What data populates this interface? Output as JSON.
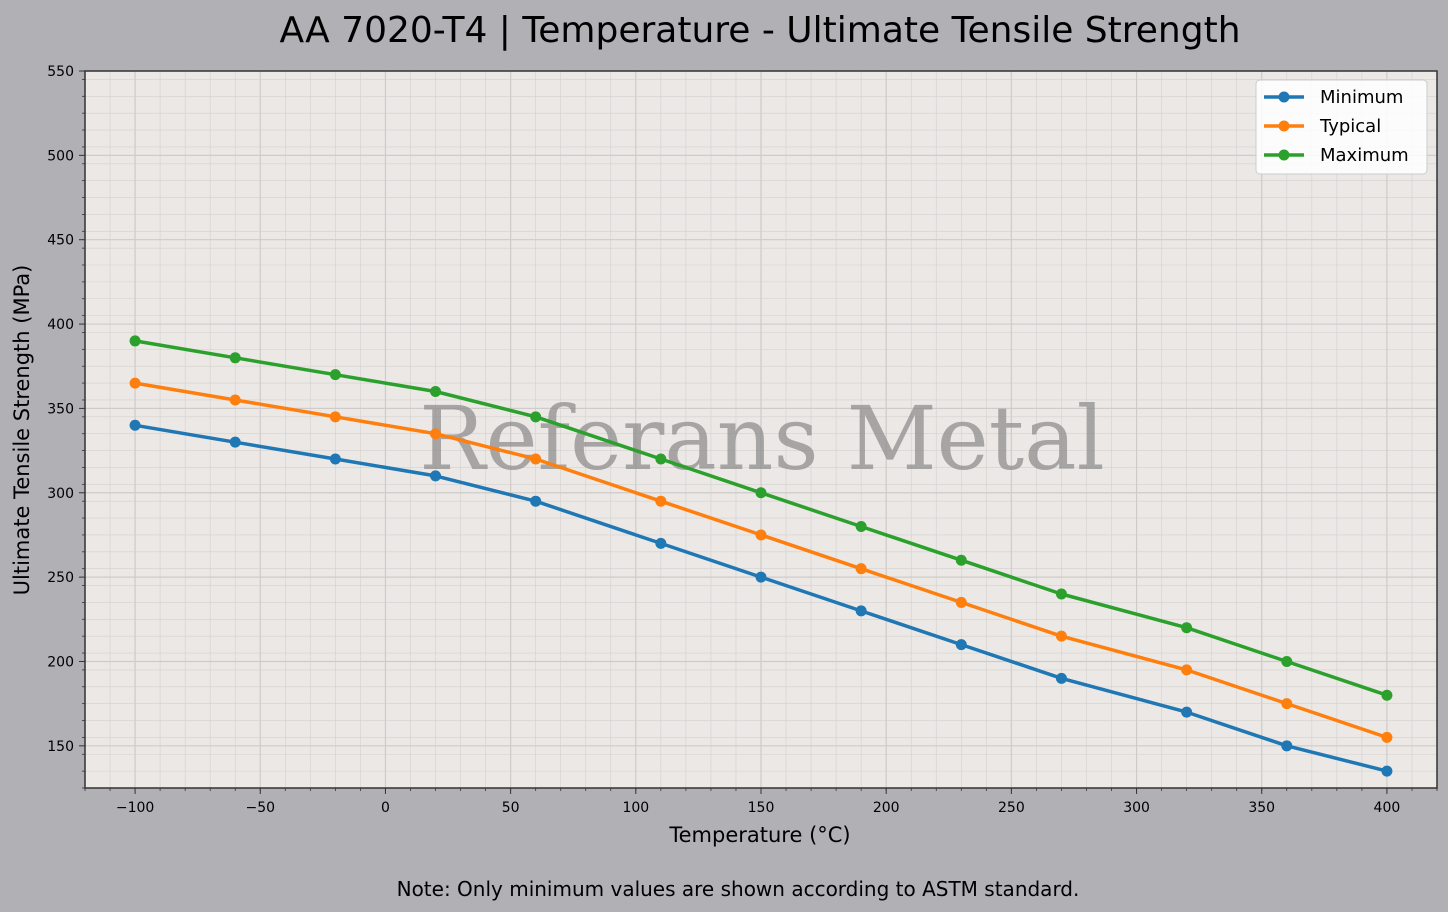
{
  "chart_data": {
    "type": "line",
    "title": "AA 7020-T4 | Temperature - Ultimate Tensile Strength",
    "xlabel": "Temperature (°C)",
    "ylabel": "Ultimate Tensile Strength (MPa)",
    "xlim": [
      -120,
      420
    ],
    "ylim": [
      125,
      550
    ],
    "x_ticks": [
      -100,
      -50,
      0,
      50,
      100,
      150,
      200,
      250,
      300,
      350,
      400
    ],
    "x_tick_labels": [
      "−100",
      "−50",
      "0",
      "50",
      "100",
      "150",
      "200",
      "250",
      "300",
      "350",
      "400"
    ],
    "y_ticks": [
      150,
      200,
      250,
      300,
      350,
      400,
      450,
      500,
      550
    ],
    "y_tick_labels": [
      "150",
      "200",
      "250",
      "300",
      "350",
      "400",
      "450",
      "500",
      "550"
    ],
    "grid": true,
    "legend_position": "top-right",
    "x": [
      -100,
      -60,
      -20,
      20,
      60,
      110,
      150,
      190,
      230,
      270,
      320,
      360,
      400
    ],
    "series": [
      {
        "name": "Minimum",
        "color": "#1f77b4",
        "values": [
          340,
          330,
          320,
          310,
          295,
          270,
          250,
          230,
          210,
          190,
          170,
          150,
          135
        ]
      },
      {
        "name": "Typical",
        "color": "#ff7f0e",
        "values": [
          365,
          355,
          345,
          335,
          320,
          295,
          275,
          255,
          235,
          215,
          195,
          175,
          155
        ]
      },
      {
        "name": "Maximum",
        "color": "#2ca02c",
        "values": [
          390,
          380,
          370,
          360,
          345,
          320,
          300,
          280,
          260,
          240,
          220,
          200,
          180
        ]
      }
    ]
  },
  "note": "Note: Only minimum values are shown according to ASTM standard.",
  "watermark": "Referans Metal",
  "colors": {
    "figure_background": "#b1b0b5",
    "plot_background": "#ebe8e6"
  }
}
